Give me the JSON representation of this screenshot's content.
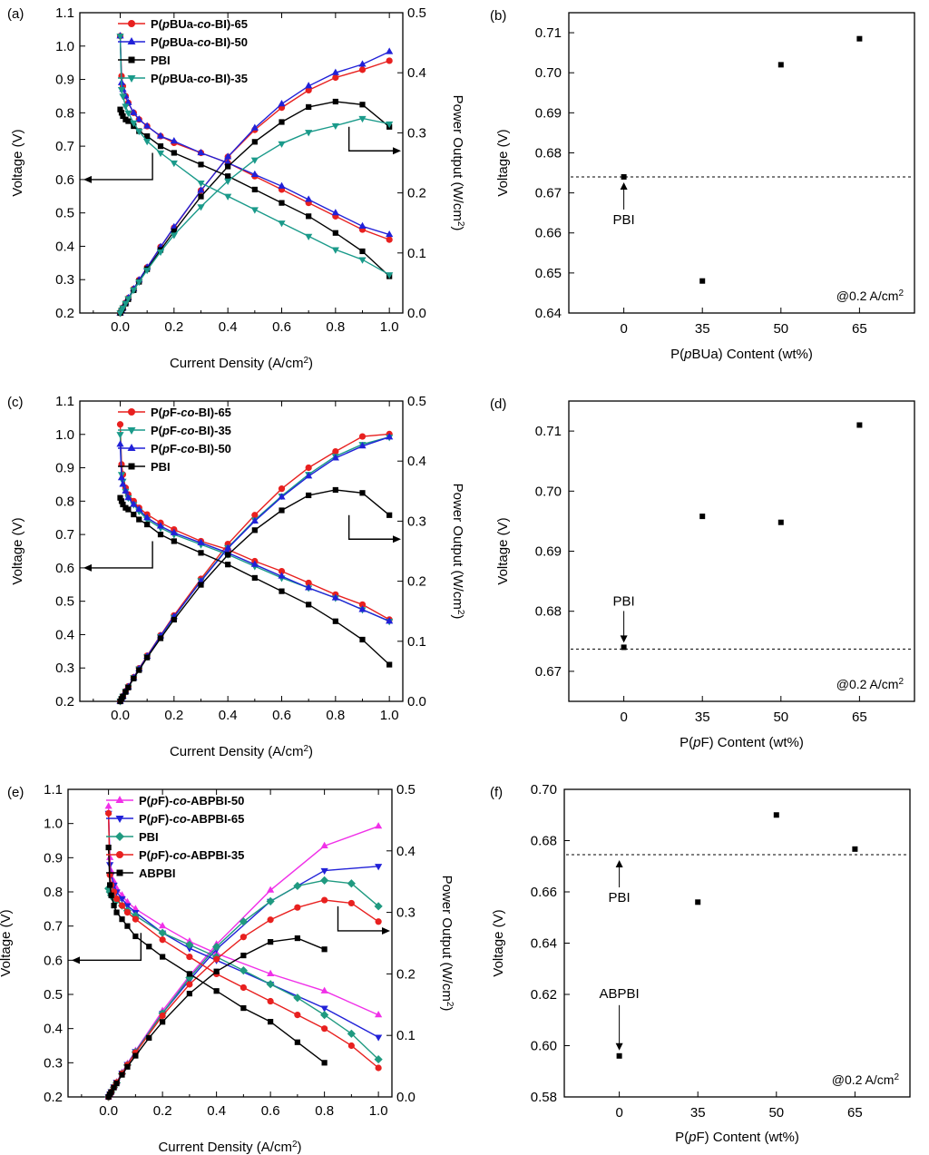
{
  "colors": {
    "red": "#e8201f",
    "blue": "#2121d8",
    "black": "#000000",
    "teal": "#1a9a8a",
    "magenta": "#f030e8",
    "green": "#1f9a80"
  },
  "chart_data": [
    {
      "panel": "(a)",
      "type": "line",
      "xlabel": "Current Density (A/cm²)",
      "ylabel": "Voltage (V)",
      "y2label": "Power Output (W/cm²)",
      "xlim": [
        -0.15,
        1.05
      ],
      "ylim": [
        0.2,
        1.1
      ],
      "y2lim": [
        0.0,
        0.5
      ],
      "xticks": [
        "0.0",
        "0.2",
        "0.4",
        "0.6",
        "0.8",
        "1.0"
      ],
      "yticks": [
        "0.2",
        "0.3",
        "0.4",
        "0.5",
        "0.6",
        "0.7",
        "0.8",
        "0.9",
        "1.0",
        "1.1"
      ],
      "y2ticks": [
        "0.0",
        "0.1",
        "0.2",
        "0.3",
        "0.4",
        "0.5"
      ],
      "legend_position": "top-left",
      "series": [
        {
          "name": "P(pBUa-co-BI)-65",
          "color": "red",
          "marker": "circle",
          "x": [
            0,
            0.005,
            0.01,
            0.02,
            0.03,
            0.05,
            0.07,
            0.1,
            0.15,
            0.2,
            0.3,
            0.4,
            0.5,
            0.6,
            0.7,
            0.8,
            0.9,
            1.0
          ],
          "voltage": [
            1.03,
            0.91,
            0.88,
            0.85,
            0.83,
            0.8,
            0.78,
            0.76,
            0.73,
            0.71,
            0.68,
            0.65,
            0.61,
            0.57,
            0.53,
            0.49,
            0.45,
            0.42
          ],
          "power": [
            0,
            0.005,
            0.009,
            0.017,
            0.025,
            0.04,
            0.055,
            0.076,
            0.11,
            0.142,
            0.204,
            0.26,
            0.305,
            0.342,
            0.371,
            0.392,
            0.405,
            0.42
          ]
        },
        {
          "name": "P(pBUa-co-BI)-50",
          "color": "blue",
          "marker": "triangle-up",
          "x": [
            0,
            0.005,
            0.01,
            0.02,
            0.03,
            0.05,
            0.07,
            0.1,
            0.15,
            0.2,
            0.3,
            0.4,
            0.5,
            0.6,
            0.7,
            0.8,
            0.9,
            1.0
          ],
          "voltage": [
            1.03,
            0.89,
            0.87,
            0.85,
            0.83,
            0.8,
            0.78,
            0.76,
            0.73,
            0.715,
            0.68,
            0.65,
            0.615,
            0.58,
            0.54,
            0.5,
            0.46,
            0.435
          ],
          "power": [
            0,
            0.0045,
            0.0087,
            0.017,
            0.025,
            0.04,
            0.055,
            0.076,
            0.11,
            0.143,
            0.204,
            0.26,
            0.308,
            0.348,
            0.378,
            0.4,
            0.414,
            0.435
          ]
        },
        {
          "name": "PBI",
          "color": "black",
          "marker": "square",
          "x": [
            0,
            0.005,
            0.01,
            0.02,
            0.03,
            0.05,
            0.07,
            0.1,
            0.15,
            0.2,
            0.3,
            0.4,
            0.5,
            0.6,
            0.7,
            0.8,
            0.9,
            1.0
          ],
          "voltage": [
            0.81,
            0.8,
            0.79,
            0.78,
            0.775,
            0.76,
            0.745,
            0.73,
            0.7,
            0.68,
            0.645,
            0.61,
            0.57,
            0.53,
            0.49,
            0.44,
            0.385,
            0.31
          ],
          "power": [
            0,
            0.004,
            0.0079,
            0.0156,
            0.023,
            0.038,
            0.052,
            0.073,
            0.105,
            0.136,
            0.194,
            0.244,
            0.285,
            0.318,
            0.343,
            0.352,
            0.347,
            0.31
          ]
        },
        {
          "name": "P(pBUa-co-BI)-35",
          "color": "teal",
          "marker": "triangle-down",
          "x": [
            0,
            0.005,
            0.01,
            0.02,
            0.03,
            0.05,
            0.07,
            0.1,
            0.15,
            0.2,
            0.3,
            0.4,
            0.5,
            0.6,
            0.7,
            0.8,
            0.9,
            1.0
          ],
          "voltage": [
            1.03,
            0.87,
            0.85,
            0.82,
            0.8,
            0.77,
            0.745,
            0.715,
            0.68,
            0.65,
            0.59,
            0.55,
            0.51,
            0.47,
            0.43,
            0.39,
            0.36,
            0.315
          ],
          "power": [
            0,
            0.0044,
            0.0085,
            0.016,
            0.024,
            0.0385,
            0.052,
            0.0715,
            0.102,
            0.13,
            0.177,
            0.22,
            0.255,
            0.282,
            0.301,
            0.312,
            0.324,
            0.315
          ]
        }
      ]
    },
    {
      "panel": "(b)",
      "type": "scatter",
      "xlabel": "P(pBUa) Content (wt%)",
      "ylabel": "Voltage (V)",
      "categories": [
        "0",
        "35",
        "50",
        "65"
      ],
      "values": [
        0.674,
        0.648,
        0.702,
        0.7085
      ],
      "ylim": [
        0.64,
        0.715
      ],
      "yticks": [
        "0.64",
        "0.65",
        "0.66",
        "0.67",
        "0.68",
        "0.69",
        "0.70",
        "0.71"
      ],
      "reference_line": 0.674,
      "annotation": "PBI",
      "note": "@0.2 A/cm²"
    },
    {
      "panel": "(c)",
      "type": "line",
      "xlabel": "Current Density (A/cm²)",
      "ylabel": "Voltage (V)",
      "y2label": "Power Output (W/cm²)",
      "xlim": [
        -0.15,
        1.05
      ],
      "ylim": [
        0.2,
        1.1
      ],
      "y2lim": [
        0.0,
        0.5
      ],
      "xticks": [
        "0.0",
        "0.2",
        "0.4",
        "0.6",
        "0.8",
        "1.0"
      ],
      "yticks": [
        "0.2",
        "0.3",
        "0.4",
        "0.5",
        "0.6",
        "0.7",
        "0.8",
        "0.9",
        "1.0",
        "1.1"
      ],
      "y2ticks": [
        "0.0",
        "0.1",
        "0.2",
        "0.3",
        "0.4",
        "0.5"
      ],
      "legend_position": "top-left",
      "series": [
        {
          "name": "P(pF-co-BI)-65",
          "color": "red",
          "marker": "circle",
          "x": [
            0,
            0.005,
            0.01,
            0.02,
            0.03,
            0.05,
            0.07,
            0.1,
            0.15,
            0.2,
            0.3,
            0.4,
            0.5,
            0.6,
            0.7,
            0.8,
            0.9,
            1.0
          ],
          "voltage": [
            1.03,
            0.91,
            0.88,
            0.84,
            0.82,
            0.8,
            0.78,
            0.76,
            0.735,
            0.715,
            0.68,
            0.655,
            0.62,
            0.59,
            0.555,
            0.52,
            0.49,
            0.445
          ],
          "power": [
            0,
            0.0045,
            0.0088,
            0.017,
            0.025,
            0.04,
            0.055,
            0.076,
            0.11,
            0.143,
            0.204,
            0.262,
            0.31,
            0.354,
            0.389,
            0.416,
            0.441,
            0.445
          ]
        },
        {
          "name": "P(pF-co-BI)-35",
          "color": "teal",
          "marker": "triangle-down",
          "x": [
            0,
            0.005,
            0.01,
            0.02,
            0.03,
            0.05,
            0.07,
            0.1,
            0.15,
            0.2,
            0.3,
            0.4,
            0.5,
            0.6,
            0.7,
            0.8,
            0.9,
            1.0
          ],
          "voltage": [
            1.0,
            0.88,
            0.86,
            0.83,
            0.81,
            0.79,
            0.77,
            0.745,
            0.72,
            0.7,
            0.67,
            0.64,
            0.605,
            0.57,
            0.54,
            0.51,
            0.475,
            0.44
          ],
          "power": [
            0,
            0.0044,
            0.0086,
            0.0166,
            0.024,
            0.0395,
            0.054,
            0.0745,
            0.108,
            0.14,
            0.201,
            0.256,
            0.302,
            0.342,
            0.378,
            0.408,
            0.428,
            0.44
          ]
        },
        {
          "name": "P(pF-co-BI)-50",
          "color": "blue",
          "marker": "triangle-up",
          "x": [
            0,
            0.005,
            0.01,
            0.02,
            0.03,
            0.05,
            0.07,
            0.1,
            0.15,
            0.2,
            0.3,
            0.4,
            0.5,
            0.6,
            0.7,
            0.8,
            0.9,
            1.0
          ],
          "voltage": [
            0.97,
            0.87,
            0.85,
            0.83,
            0.81,
            0.79,
            0.775,
            0.75,
            0.725,
            0.705,
            0.675,
            0.645,
            0.61,
            0.575,
            0.54,
            0.51,
            0.475,
            0.44
          ],
          "power": [
            0,
            0.0043,
            0.0085,
            0.0166,
            0.024,
            0.0395,
            0.054,
            0.075,
            0.109,
            0.141,
            0.2,
            0.255,
            0.3,
            0.34,
            0.375,
            0.405,
            0.425,
            0.44
          ]
        },
        {
          "name": "PBI",
          "color": "black",
          "marker": "square",
          "x": [
            0,
            0.005,
            0.01,
            0.02,
            0.03,
            0.05,
            0.07,
            0.1,
            0.15,
            0.2,
            0.3,
            0.4,
            0.5,
            0.6,
            0.7,
            0.8,
            0.9,
            1.0
          ],
          "voltage": [
            0.81,
            0.8,
            0.79,
            0.78,
            0.775,
            0.76,
            0.745,
            0.73,
            0.7,
            0.68,
            0.645,
            0.61,
            0.57,
            0.53,
            0.49,
            0.44,
            0.385,
            0.31
          ],
          "power": [
            0,
            0.004,
            0.0079,
            0.0156,
            0.023,
            0.038,
            0.052,
            0.073,
            0.105,
            0.136,
            0.194,
            0.244,
            0.285,
            0.318,
            0.343,
            0.352,
            0.347,
            0.31
          ]
        }
      ]
    },
    {
      "panel": "(d)",
      "type": "scatter",
      "xlabel": "P(pF) Content (wt%)",
      "ylabel": "Voltage (V)",
      "categories": [
        "0",
        "35",
        "50",
        "65"
      ],
      "values": [
        0.674,
        0.6958,
        0.6948,
        0.711
      ],
      "ylim": [
        0.665,
        0.715
      ],
      "yticks": [
        "0.67",
        "0.68",
        "0.69",
        "0.70",
        "0.71"
      ],
      "reference_line": 0.6737,
      "annotation": "PBI",
      "note": "@0.2 A/cm²"
    },
    {
      "panel": "(e)",
      "type": "line",
      "xlabel": "Current Density (A/cm²)",
      "ylabel": "Voltage (V)",
      "y2label": "Power Output (W/cm²)",
      "xlim": [
        -0.15,
        1.05
      ],
      "ylim": [
        0.2,
        1.1
      ],
      "y2lim": [
        0.0,
        0.5
      ],
      "xticks": [
        "0.0",
        "0.2",
        "0.4",
        "0.6",
        "0.8",
        "1.0"
      ],
      "yticks": [
        "0.2",
        "0.3",
        "0.4",
        "0.5",
        "0.6",
        "0.7",
        "0.8",
        "0.9",
        "1.0",
        "1.1"
      ],
      "y2ticks": [
        "0.0",
        "0.1",
        "0.2",
        "0.3",
        "0.4",
        "0.5"
      ],
      "legend_position": "top-left",
      "series": [
        {
          "name": "P(pF)-co-ABPBI-50",
          "color": "magenta",
          "marker": "triangle-up",
          "x": [
            0,
            0.005,
            0.01,
            0.02,
            0.03,
            0.05,
            0.07,
            0.1,
            0.2,
            0.3,
            0.4,
            0.6,
            0.8,
            1.0
          ],
          "voltage": [
            1.05,
            0.9,
            0.86,
            0.83,
            0.81,
            0.79,
            0.77,
            0.75,
            0.7,
            0.655,
            0.62,
            0.56,
            0.51,
            0.44
          ],
          "power": [
            0,
            0.0045,
            0.0086,
            0.0166,
            0.024,
            0.0395,
            0.054,
            0.075,
            0.14,
            0.197,
            0.248,
            0.336,
            0.408,
            0.44
          ]
        },
        {
          "name": "P(pF)-co-ABPBI-65",
          "color": "blue",
          "marker": "triangle-down",
          "x": [
            0,
            0.005,
            0.01,
            0.02,
            0.03,
            0.05,
            0.07,
            0.1,
            0.2,
            0.3,
            0.4,
            0.6,
            0.8,
            1.0
          ],
          "voltage": [
            1.03,
            0.88,
            0.85,
            0.82,
            0.8,
            0.78,
            0.76,
            0.74,
            0.68,
            0.635,
            0.6,
            0.53,
            0.46,
            0.375
          ],
          "power": [
            0,
            0.0044,
            0.0085,
            0.0164,
            0.024,
            0.039,
            0.053,
            0.074,
            0.136,
            0.19,
            0.24,
            0.318,
            0.368,
            0.375
          ]
        },
        {
          "name": "PBI",
          "color": "green",
          "marker": "diamond",
          "x": [
            0,
            0.005,
            0.01,
            0.02,
            0.03,
            0.05,
            0.07,
            0.1,
            0.2,
            0.3,
            0.4,
            0.5,
            0.6,
            0.7,
            0.8,
            0.9,
            1.0
          ],
          "voltage": [
            0.81,
            0.8,
            0.79,
            0.78,
            0.775,
            0.76,
            0.745,
            0.73,
            0.68,
            0.645,
            0.61,
            0.57,
            0.53,
            0.49,
            0.44,
            0.385,
            0.31
          ],
          "power": [
            0,
            0.004,
            0.0079,
            0.0156,
            0.023,
            0.038,
            0.052,
            0.073,
            0.136,
            0.194,
            0.244,
            0.285,
            0.318,
            0.343,
            0.352,
            0.347,
            0.31
          ]
        },
        {
          "name": "P(pF)-co-ABPBI-35",
          "color": "red",
          "marker": "circle",
          "x": [
            0,
            0.005,
            0.01,
            0.02,
            0.03,
            0.05,
            0.07,
            0.1,
            0.2,
            0.3,
            0.4,
            0.5,
            0.6,
            0.7,
            0.8,
            0.9,
            1.0
          ],
          "voltage": [
            1.03,
            0.85,
            0.82,
            0.8,
            0.78,
            0.76,
            0.74,
            0.72,
            0.66,
            0.61,
            0.56,
            0.52,
            0.48,
            0.44,
            0.4,
            0.35,
            0.285
          ],
          "power": [
            0,
            0.0043,
            0.0082,
            0.016,
            0.0234,
            0.038,
            0.052,
            0.072,
            0.132,
            0.183,
            0.224,
            0.26,
            0.288,
            0.308,
            0.32,
            0.315,
            0.285
          ]
        },
        {
          "name": "ABPBI",
          "color": "black",
          "marker": "square",
          "x": [
            0,
            0.005,
            0.01,
            0.02,
            0.03,
            0.05,
            0.07,
            0.1,
            0.15,
            0.2,
            0.3,
            0.4,
            0.5,
            0.6,
            0.7,
            0.8
          ],
          "voltage": [
            0.93,
            0.82,
            0.79,
            0.76,
            0.74,
            0.72,
            0.7,
            0.67,
            0.64,
            0.61,
            0.56,
            0.51,
            0.46,
            0.42,
            0.36,
            0.3
          ],
          "power": [
            0,
            0.0041,
            0.0079,
            0.0152,
            0.022,
            0.036,
            0.049,
            0.067,
            0.096,
            0.122,
            0.168,
            0.204,
            0.23,
            0.252,
            0.258,
            0.24
          ]
        }
      ]
    },
    {
      "panel": "(f)",
      "type": "scatter",
      "xlabel": "P(pF) Content (wt%)",
      "ylabel": "Voltage (V)",
      "categories": [
        "0",
        "35",
        "50",
        "65"
      ],
      "values": [
        0.596,
        0.656,
        0.69,
        0.6767
      ],
      "ylim": [
        0.58,
        0.7
      ],
      "yticks": [
        "0.58",
        "0.60",
        "0.62",
        "0.64",
        "0.66",
        "0.68",
        "0.70"
      ],
      "reference_line": 0.6745,
      "annotation": "PBI",
      "annotation2": "ABPBI",
      "note": "@0.2 A/cm²"
    }
  ]
}
